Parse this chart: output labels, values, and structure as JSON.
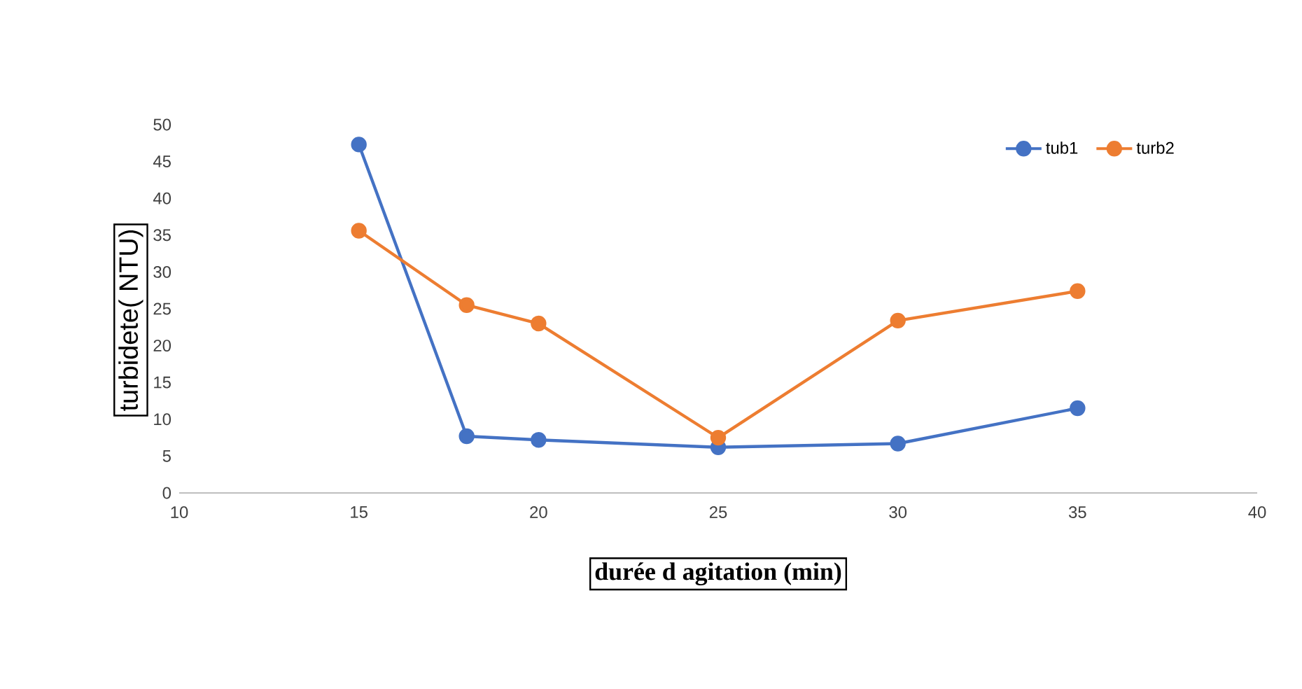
{
  "chart_data": {
    "type": "line",
    "xlabel": "durée d agitation (min)",
    "ylabel": "turbidete( NTU)",
    "x": [
      15,
      18,
      20,
      25,
      30,
      35
    ],
    "series": [
      {
        "name": "tub1",
        "color": "#4472c4",
        "values": [
          47.3,
          7.7,
          7.2,
          6.2,
          6.7,
          11.5
        ]
      },
      {
        "name": "turb2",
        "color": "#ed7d31",
        "values": [
          35.6,
          25.5,
          23.0,
          7.5,
          23.4,
          27.4
        ]
      }
    ],
    "xlim": [
      10,
      40
    ],
    "xticks": [
      10,
      15,
      20,
      25,
      30,
      35,
      40
    ],
    "ylim": [
      0,
      50
    ],
    "yticks": [
      0,
      5,
      10,
      15,
      20,
      25,
      30,
      35,
      40,
      45,
      50
    ],
    "grid": false,
    "legend": "top right",
    "marker": "circle",
    "line_style": "solid"
  }
}
